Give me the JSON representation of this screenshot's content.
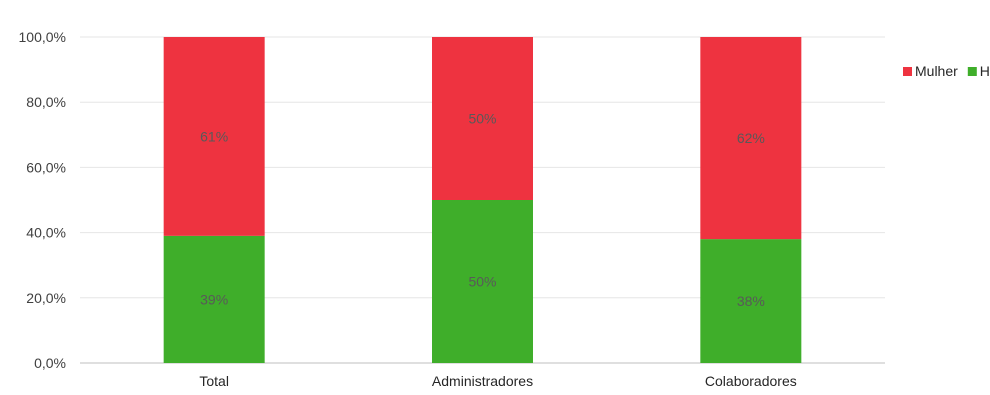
{
  "chart_data": {
    "type": "bar",
    "stacked": true,
    "categories": [
      "Total",
      "Administradores",
      "Colaboradores"
    ],
    "series": [
      {
        "name": "Homem",
        "values": [
          39,
          50,
          38
        ],
        "labels": [
          "39%",
          "50%",
          "38%"
        ],
        "color": "#3fae2a"
      },
      {
        "name": "Mulher",
        "values": [
          61,
          50,
          62
        ],
        "labels": [
          "61%",
          "50%",
          "62%"
        ],
        "color": "#ee3340"
      }
    ],
    "legend_order": [
      "Mulher",
      "Homem"
    ],
    "legend_position": "right",
    "ylim": [
      0,
      100
    ],
    "yticks": [
      "0,0%",
      "20,0%",
      "40,0%",
      "60,0%",
      "80,0%",
      "100,0%"
    ],
    "ytick_values": [
      0,
      20,
      40,
      60,
      80,
      100
    ],
    "grid": true,
    "xlabel": "",
    "ylabel": ""
  }
}
